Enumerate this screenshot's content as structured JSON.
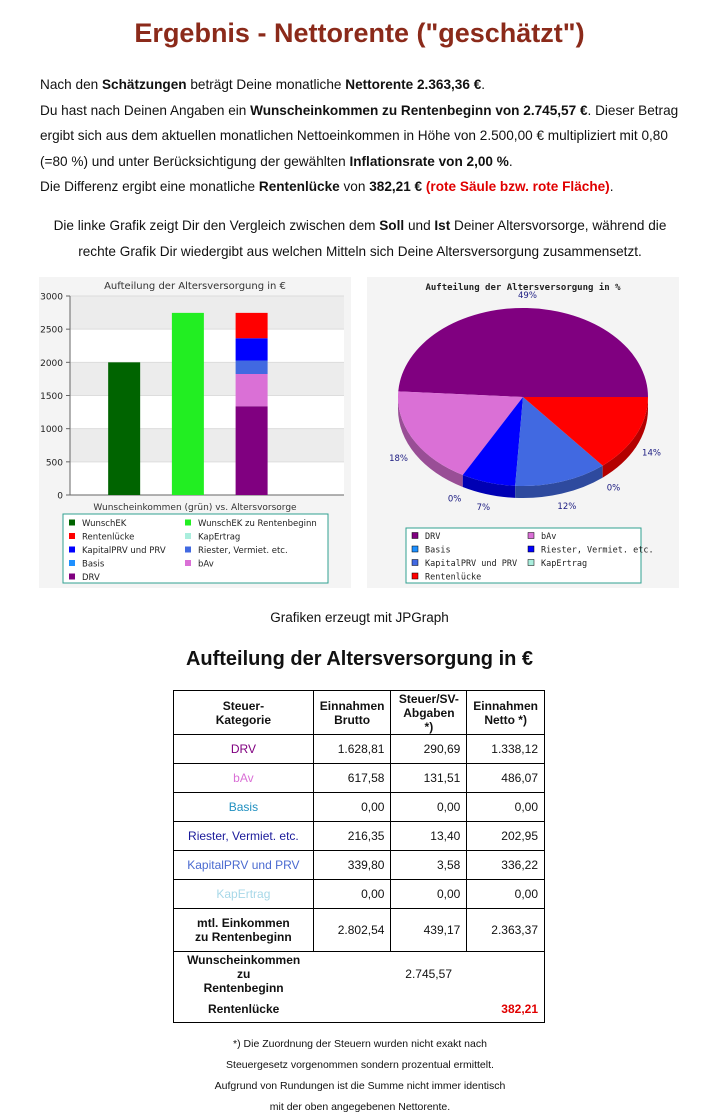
{
  "title": "Ergebnis - Nettorente (\"geschätzt\")",
  "intro": [
    [
      "Nach den ",
      "Schätzungen",
      " beträgt Deine monatliche ",
      "Nettorente 2.363,36 €",
      "."
    ],
    [
      "Du hast nach Deinen Angaben ein ",
      "Wunscheinkommen zu Rentenbeginn von 2.745,57 €",
      ". Dieser Betrag ergibt sich aus dem aktuellen monatlichen Nettoeinkommen in Höhe von 2.500,00 € multipliziert mit 0,80 (=80 %) und unter Berücksichtigung der gewählten ",
      "Inflationsrate von 2,00 %",
      "."
    ],
    [
      "Die Differenz ergibt eine monatliche ",
      "Rentenlücke",
      " von ",
      "382,21 €",
      "(rote Säule bzw. rote Fläche)",
      "."
    ]
  ],
  "explanation": [
    "Die linke Grafik zeigt Dir den Vergleich zwischen dem ",
    "Soll",
    " und ",
    "Ist",
    " Deiner Altersvorsorge, während die rechte Grafik Dir wiedergibt aus welchen Mitteln sich Deine Altersversorgung zusammensetzt."
  ],
  "chart_data": [
    {
      "type": "bar",
      "title": "Aufteilung der Altersversorgung in €",
      "x_label": "Wunscheinkommen (grün) vs. Altersvorsorge",
      "categories": [
        null,
        null,
        null
      ],
      "stacked": true,
      "grid": true,
      "ylim": [
        0,
        3000
      ],
      "yticks": [
        0,
        500,
        1000,
        1500,
        2000,
        2500,
        3000
      ],
      "series": [
        {
          "name": "WunschEK",
          "color": "#006400",
          "values": [
            2000,
            null,
            null
          ]
        },
        {
          "name": "WunschEK zu Rentenbeginn",
          "color": "#22ee22",
          "values": [
            null,
            2745.57,
            null
          ]
        },
        {
          "name": "Rentenlücke",
          "color": "#ff0000",
          "values": [
            null,
            null,
            382.21
          ]
        },
        {
          "name": "KapErtrag",
          "color": "#aaeedd",
          "values": [
            null,
            null,
            0
          ]
        },
        {
          "name": "KapitalPRV und PRV",
          "color": "#0000ff",
          "values": [
            null,
            null,
            336.22
          ]
        },
        {
          "name": "Riester, Vermiet. etc.",
          "color": "#4169e1",
          "values": [
            null,
            null,
            202.95
          ]
        },
        {
          "name": "Basis",
          "color": "#1e90ff",
          "values": [
            null,
            null,
            0
          ]
        },
        {
          "name": "bAv",
          "color": "#da70d6",
          "values": [
            null,
            null,
            486.07
          ]
        },
        {
          "name": "DRV",
          "color": "#800080",
          "values": [
            null,
            null,
            1338.12
          ]
        }
      ]
    },
    {
      "type": "pie",
      "title": "Aufteilung der Altersversorgung in %",
      "categories": [
        "DRV",
        "bAv",
        "Basis",
        "Riester, Vermiet. etc.",
        "KapitalPRV und PRV",
        "KapErtrag",
        "Rentenlücke"
      ],
      "values": [
        49,
        18,
        0,
        7,
        12,
        0,
        14
      ],
      "value_labels": [
        "49%",
        "18%",
        "0%",
        "7%",
        "12%",
        "0%",
        "14%"
      ],
      "colors": [
        "#800080",
        "#da70d6",
        "#1e90ff",
        "#0000ff",
        "#4169e1",
        "#aaeedd",
        "#ff0000"
      ]
    }
  ],
  "charts_caption": "Grafiken erzeugt mit JPGraph",
  "table": {
    "title": "Aufteilung der Altersversorgung in €",
    "header": [
      "Steuer-\nKategorie",
      "Einnahmen\nBrutto",
      "Steuer/SV-\nAbgaben *)",
      "Einnahmen\nNetto *)"
    ],
    "rows": [
      {
        "color": "#800080",
        "cells": [
          "DRV",
          "1.628,81",
          "290,69",
          "1.338,12"
        ]
      },
      {
        "color": "#da70d6",
        "cells": [
          "bAv",
          "617,58",
          "131,51",
          "486,07"
        ]
      },
      {
        "color": "#2090c0",
        "cells": [
          "Basis",
          "0,00",
          "0,00",
          "0,00"
        ]
      },
      {
        "color": "#1a1a9a",
        "cells": [
          "Riester, Vermiet. etc.",
          "216,35",
          "13,40",
          "202,95"
        ]
      },
      {
        "color": "#4a6ad0",
        "cells": [
          "KapitalPRV und PRV",
          "339,80",
          "3,58",
          "336,22"
        ]
      },
      {
        "color": "#a8d8e8",
        "cells": [
          "KapErtrag",
          "0,00",
          "0,00",
          "0,00"
        ]
      }
    ],
    "total_row": [
      "mtl. Einkommen\nzu Rentenbeginn",
      "2.802,54",
      "439,17",
      "2.363,37"
    ],
    "wish_row": [
      "Wunscheinkommen zu\nRentenbeginn",
      "2.745,57"
    ],
    "gap_row": [
      "Rentenlücke",
      "382,21"
    ]
  },
  "footnote": [
    "*) Die Zuordnung der Steuern wurden nicht exakt nach",
    "Steuergesetz vorgenommen sondern prozentual ermittelt.",
    "Aufgrund von Rundungen ist die Summe nicht immer identisch",
    "mit der oben angegebenen Nettorente."
  ]
}
